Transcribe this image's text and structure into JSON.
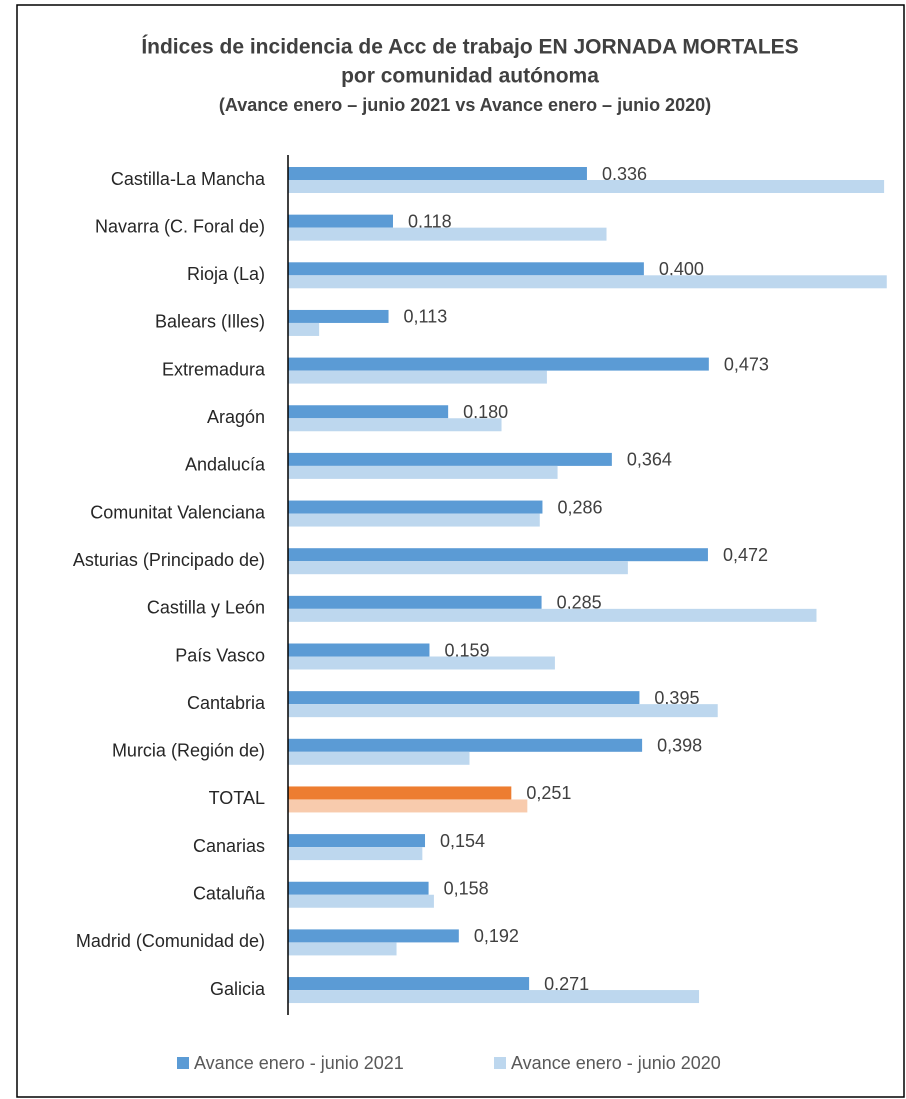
{
  "chart_data": {
    "type": "bar",
    "orientation": "horizontal",
    "title": [
      "Índices de incidencia de Acc de trabajo EN JORNADA MORTALES",
      "por comunidad autónoma"
    ],
    "subtitle": "(Avance enero – junio 2021 vs Avance enero – junio 2020)",
    "categories": [
      "Castilla-La Mancha",
      "Navarra (C. Foral de)",
      "Rioja (La)",
      "Balears (Illes)",
      "Extremadura",
      "Aragón",
      "Andalucía",
      "Comunitat Valenciana",
      "Asturias (Principado de)",
      "Castilla y León",
      "País Vasco",
      "Cantabria",
      "Murcia (Región de)",
      "TOTAL",
      "Canarias",
      "Cataluña",
      "Madrid (Comunidad de)",
      "Galicia"
    ],
    "series": [
      {
        "name": "Avance enero - junio 2021",
        "color": "#5b9bd5",
        "colors": [
          "#5b9bd5",
          "#5b9bd5",
          "#5b9bd5",
          "#5b9bd5",
          "#5b9bd5",
          "#5b9bd5",
          "#5b9bd5",
          "#5b9bd5",
          "#5b9bd5",
          "#5b9bd5",
          "#5b9bd5",
          "#5b9bd5",
          "#5b9bd5",
          "#ed7d31",
          "#5b9bd5",
          "#5b9bd5",
          "#5b9bd5",
          "#5b9bd5"
        ],
        "values": [
          0.336,
          0.118,
          0.4,
          0.113,
          0.473,
          0.18,
          0.364,
          0.286,
          0.472,
          0.285,
          0.159,
          0.395,
          0.398,
          0.251,
          0.154,
          0.158,
          0.192,
          0.271
        ],
        "value_labels": [
          "0,336",
          "0,118",
          "0,400",
          "0,113",
          "0,473",
          "0,180",
          "0,364",
          "0,286",
          "0,472",
          "0,285",
          "0,159",
          "0,395",
          "0,398",
          "0,251",
          "0,154",
          "0,158",
          "0,192",
          "0,271"
        ]
      },
      {
        "name": "Avance enero - junio 2020",
        "color": "#bdd7ee",
        "colors": [
          "#bdd7ee",
          "#bdd7ee",
          "#bdd7ee",
          "#bdd7ee",
          "#bdd7ee",
          "#bdd7ee",
          "#bdd7ee",
          "#bdd7ee",
          "#bdd7ee",
          "#bdd7ee",
          "#bdd7ee",
          "#bdd7ee",
          "#bdd7ee",
          "#f8cbad",
          "#bdd7ee",
          "#bdd7ee",
          "#bdd7ee",
          "#bdd7ee"
        ],
        "values": [
          0.67,
          0.358,
          0.673,
          0.035,
          0.291,
          0.24,
          0.303,
          0.283,
          0.382,
          0.594,
          0.3,
          0.483,
          0.204,
          0.269,
          0.151,
          0.164,
          0.122,
          0.462
        ]
      }
    ],
    "xlim": [
      0,
      0.68
    ],
    "legend": "bottom"
  }
}
